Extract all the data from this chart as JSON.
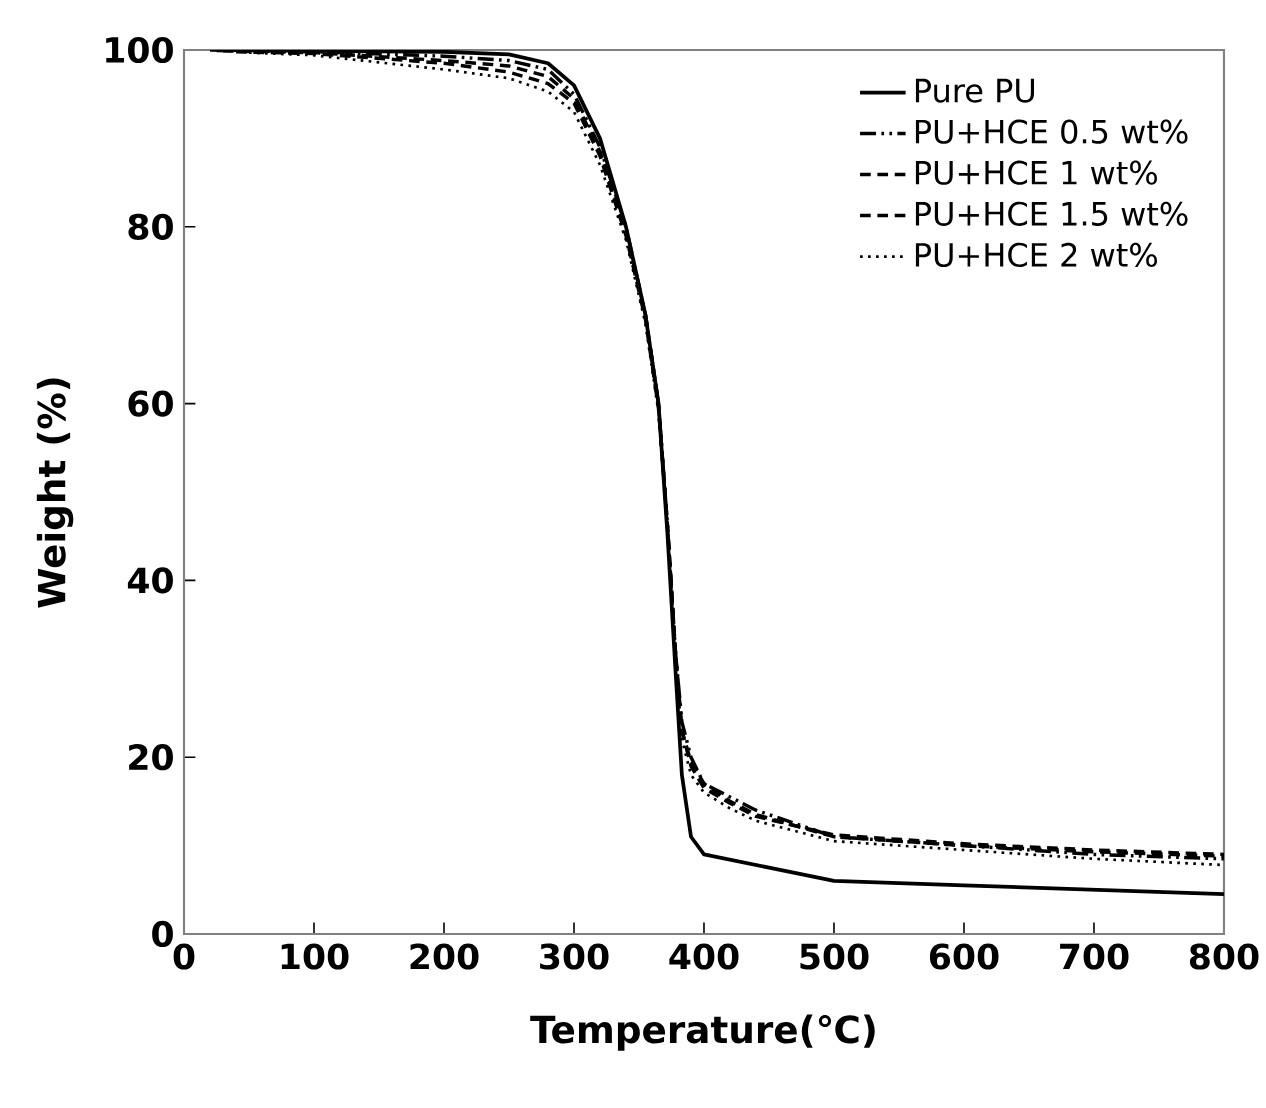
{
  "chart_data": {
    "type": "line",
    "xlabel": "Temperature(℃)",
    "ylabel": "Weight (%)",
    "xlim": [
      0,
      800
    ],
    "ylim": [
      0,
      100
    ],
    "xticks": [
      0,
      100,
      200,
      300,
      400,
      500,
      600,
      700,
      800
    ],
    "yticks": [
      0,
      20,
      40,
      60,
      80,
      100
    ],
    "legend": "top right",
    "grid": false,
    "series": [
      {
        "name": "Pure PU",
        "color": "#000000",
        "line_style": "solid",
        "x": [
          20,
          100,
          200,
          250,
          280,
          300,
          320,
          340,
          355,
          365,
          372,
          378,
          383,
          390,
          400,
          450,
          500,
          600,
          700,
          800
        ],
        "values": [
          100,
          99.9,
          99.8,
          99.5,
          98.5,
          96,
          90,
          80,
          70,
          60,
          45,
          30,
          18,
          11,
          9,
          7.5,
          6,
          5.5,
          5,
          4.5
        ]
      },
      {
        "name": "PU+HCE 0.5 wt%",
        "color": "#000000",
        "line_style": "dashdot",
        "x": [
          25,
          100,
          200,
          250,
          280,
          300,
          320,
          340,
          355,
          365,
          372,
          378,
          383,
          390,
          400,
          420,
          440,
          500,
          600,
          700,
          800
        ],
        "values": [
          99.95,
          99.8,
          99.3,
          98.8,
          97.8,
          95,
          89,
          80,
          70,
          60,
          46,
          32,
          24,
          20,
          17,
          15.5,
          14,
          11,
          10,
          9,
          8.5
        ]
      },
      {
        "name": "PU+HCE 1 wt%",
        "color": "#000000",
        "line_style": "dashed",
        "x": [
          30,
          100,
          200,
          250,
          280,
          300,
          320,
          340,
          355,
          365,
          372,
          378,
          383,
          390,
          400,
          420,
          440,
          500,
          600,
          700,
          800
        ],
        "values": [
          99.9,
          99.7,
          98.8,
          98.2,
          97,
          94.5,
          88.5,
          79.5,
          70,
          60,
          46,
          32,
          23,
          19.5,
          17,
          15,
          13.5,
          11,
          10,
          9.3,
          8.8
        ]
      },
      {
        "name": "PU+HCE 1.5 wt%",
        "color": "#000000",
        "line_style": "dashed",
        "x": [
          40,
          100,
          200,
          250,
          280,
          300,
          320,
          340,
          355,
          365,
          372,
          378,
          383,
          390,
          400,
          420,
          440,
          500,
          600,
          700,
          800
        ],
        "values": [
          99.8,
          99.6,
          98.5,
          97.5,
          96.2,
          94,
          88,
          79,
          69.5,
          59.5,
          46,
          32,
          23,
          19,
          16.5,
          14.8,
          13.3,
          11.2,
          10.2,
          9.5,
          9
        ]
      },
      {
        "name": "PU+HCE 2 wt%",
        "color": "#000000",
        "line_style": "dotted",
        "x": [
          50,
          100,
          200,
          250,
          280,
          300,
          320,
          340,
          355,
          365,
          372,
          378,
          383,
          390,
          400,
          420,
          440,
          500,
          600,
          700,
          800
        ],
        "values": [
          99.7,
          99.4,
          97.8,
          96.8,
          95.3,
          93,
          87,
          78.5,
          69,
          59,
          46,
          32,
          22,
          18,
          16,
          14.2,
          12.8,
          10.5,
          9.5,
          8.5,
          7.8
        ]
      }
    ]
  }
}
